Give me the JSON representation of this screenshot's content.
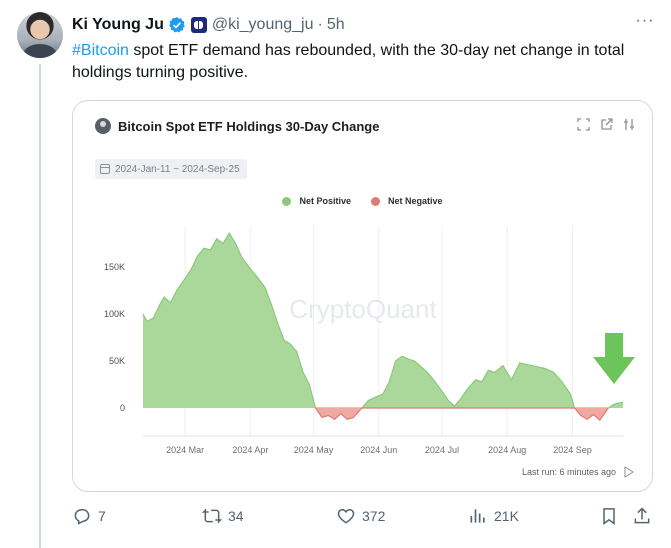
{
  "tweet": {
    "author_name": "Ki Young Ju",
    "handle": "@ki_young_ju",
    "separator": "·",
    "time": "5h",
    "hashtag": "#Bitcoin",
    "text": " spot ETF demand has rebounded, with the 30-day net change in total holdings turning positive."
  },
  "card": {
    "title": "Bitcoin Spot ETF Holdings 30-Day Change",
    "date_range": "2024-Jan-11 ~ 2024-Sep-25",
    "watermark": "CryptoQuant",
    "last_run": "Last run: 6 minutes ago",
    "tools": [
      "expand-icon",
      "external-link-icon",
      "settings-icon"
    ]
  },
  "actions": {
    "replies": "7",
    "reposts": "34",
    "likes": "372",
    "views": "21K"
  },
  "colors": {
    "positive": "#8cc97a",
    "positive_fill": "#a9d89a",
    "negative": "#e07a72",
    "negative_fill": "#f0a8a2",
    "arrow": "#6cc55a",
    "link": "#1d9bf0"
  },
  "chart_data": {
    "type": "area",
    "title": "Bitcoin Spot ETF Holdings 30-Day Change",
    "legend": [
      "Net Positive",
      "Net Negative"
    ],
    "legend_position": "top-center",
    "x_ticks": [
      "2024 Mar",
      "2024 Apr",
      "2024 May",
      "2024 Jun",
      "2024 Jul",
      "2024 Aug",
      "2024 Sep"
    ],
    "y_ticks": [
      "0",
      "50K",
      "100K",
      "150K"
    ],
    "ylim": [
      -20000,
      175000
    ],
    "grid": "vertical",
    "series": [
      {
        "name": "Net Positive",
        "x": [
          "2024-02-10",
          "2024-02-12",
          "2024-02-15",
          "2024-02-18",
          "2024-02-20",
          "2024-02-23",
          "2024-02-26",
          "2024-03-01",
          "2024-03-04",
          "2024-03-07",
          "2024-03-10",
          "2024-03-13",
          "2024-03-16",
          "2024-03-19",
          "2024-03-22",
          "2024-03-25",
          "2024-03-28",
          "2024-04-01",
          "2024-04-04",
          "2024-04-08",
          "2024-04-11",
          "2024-04-14",
          "2024-04-17",
          "2024-04-20",
          "2024-04-23",
          "2024-04-26",
          "2024-04-29",
          "2024-05-01",
          "2024-05-02",
          "2024-05-24",
          "2024-05-27",
          "2024-05-31",
          "2024-06-03",
          "2024-06-06",
          "2024-06-09",
          "2024-06-12",
          "2024-06-15",
          "2024-06-18",
          "2024-06-21",
          "2024-06-24",
          "2024-06-27",
          "2024-07-01",
          "2024-07-04",
          "2024-07-07",
          "2024-07-10",
          "2024-07-13",
          "2024-07-17",
          "2024-07-20",
          "2024-07-23",
          "2024-07-26",
          "2024-07-30",
          "2024-08-03",
          "2024-08-07",
          "2024-08-11",
          "2024-08-15",
          "2024-08-19",
          "2024-08-23",
          "2024-08-27",
          "2024-08-31",
          "2024-09-02",
          "2024-09-18",
          "2024-09-20",
          "2024-09-22",
          "2024-09-25"
        ],
        "values": [
          100000,
          92000,
          96000,
          110000,
          118000,
          112000,
          125000,
          138000,
          148000,
          162000,
          170000,
          168000,
          180000,
          175000,
          186000,
          175000,
          160000,
          148000,
          140000,
          128000,
          110000,
          90000,
          72000,
          68000,
          60000,
          38000,
          25000,
          8000,
          0,
          0,
          8000,
          12000,
          15000,
          28000,
          50000,
          55000,
          52000,
          50000,
          44000,
          38000,
          30000,
          18000,
          8000,
          2000,
          10000,
          20000,
          30000,
          28000,
          40000,
          38000,
          45000,
          30000,
          48000,
          46000,
          44000,
          42000,
          38000,
          28000,
          15000,
          0,
          0,
          3000,
          5000,
          6000
        ]
      },
      {
        "name": "Net Negative",
        "x": [
          "2024-05-02",
          "2024-05-05",
          "2024-05-08",
          "2024-05-11",
          "2024-05-14",
          "2024-05-17",
          "2024-05-20",
          "2024-05-24",
          "2024-09-02",
          "2024-09-05",
          "2024-09-08",
          "2024-09-11",
          "2024-09-14",
          "2024-09-18"
        ],
        "values": [
          0,
          -10000,
          -8000,
          -12000,
          -6000,
          -12000,
          -10000,
          0,
          0,
          -8000,
          -12000,
          -7000,
          -13000,
          0
        ]
      }
    ]
  }
}
